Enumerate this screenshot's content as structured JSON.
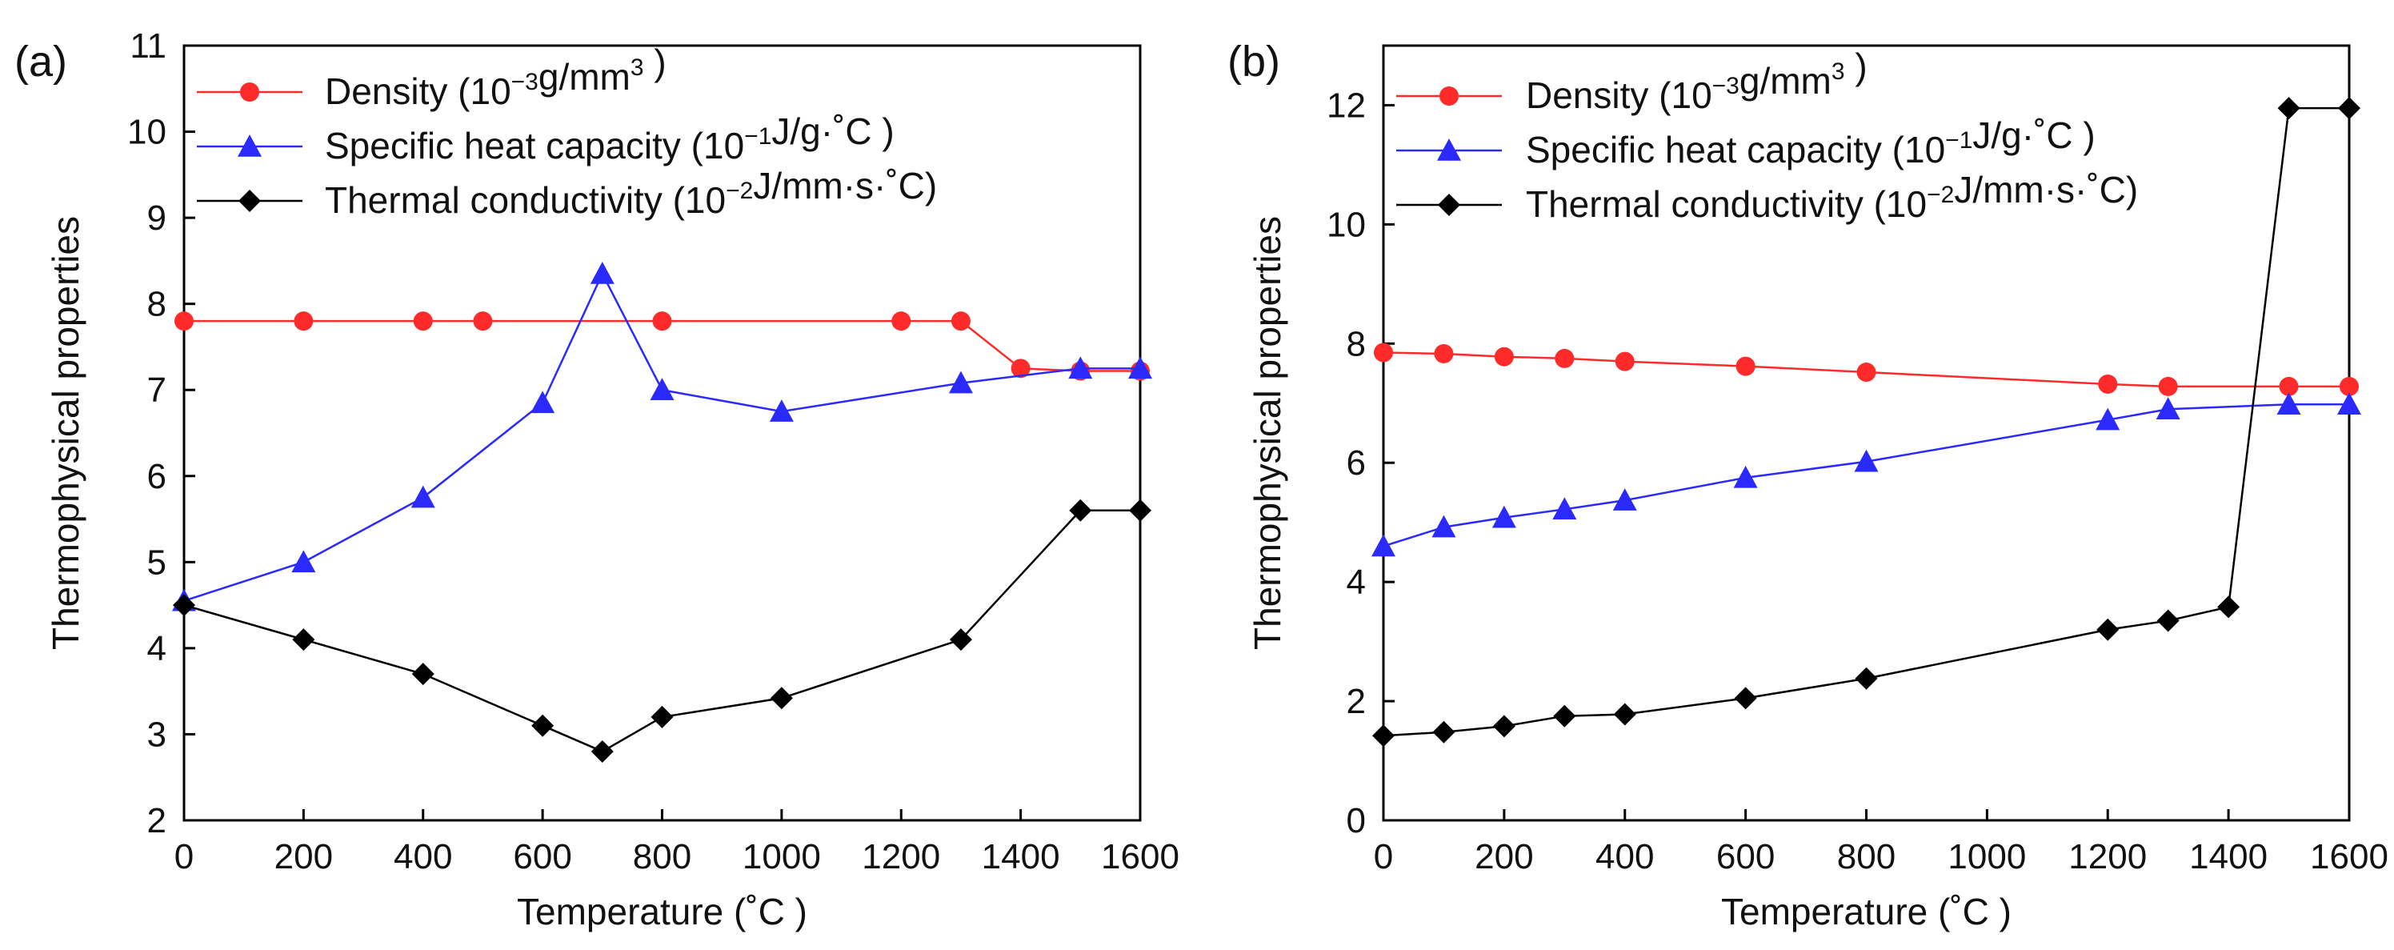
{
  "chart_data": [
    {
      "type": "line",
      "panel_label": "(a)",
      "xlabel": "Temperature (˚C )",
      "ylabel": "Thermophysical properties",
      "xlim": [
        0,
        1600
      ],
      "ylim": [
        2,
        11
      ],
      "xticks": [
        0,
        200,
        400,
        600,
        800,
        1000,
        1200,
        1400,
        1600
      ],
      "xtick_labels": [
        "0",
        "200",
        "400",
        "600",
        "800",
        "1000",
        "1200",
        "1400",
        "1600"
      ],
      "yticks": [
        2,
        3,
        4,
        5,
        6,
        7,
        8,
        9,
        10,
        11
      ],
      "ytick_labels": [
        "2",
        "3",
        "4",
        "5",
        "6",
        "7",
        "8",
        "9",
        "10",
        "11"
      ],
      "grid": false,
      "legend_position": "top-left",
      "series": [
        {
          "name": "Density",
          "legend_base": "Density (10",
          "legend_exp": "−3",
          "legend_mid": "g/mm",
          "legend_sup2": "3",
          "legend_tail": " )",
          "color": "#ff2a2a",
          "marker": "circle",
          "x": [
            0,
            200,
            400,
            500,
            800,
            1200,
            1300,
            1400,
            1500,
            1600
          ],
          "y": [
            7.8,
            7.8,
            7.8,
            7.8,
            7.8,
            7.8,
            7.8,
            7.25,
            7.22,
            7.22
          ]
        },
        {
          "name": "Specific heat capacity",
          "legend_base": "Specific heat capacity (10",
          "legend_exp": "−1",
          "legend_mid": "J/g·˚C )",
          "legend_sup2": "",
          "legend_tail": "",
          "color": "#2a2aff",
          "marker": "triangle",
          "x": [
            0,
            200,
            400,
            600,
            700,
            800,
            1000,
            1300,
            1500,
            1600
          ],
          "y": [
            4.55,
            5.0,
            5.75,
            6.85,
            8.35,
            7.0,
            6.75,
            7.08,
            7.25,
            7.25
          ]
        },
        {
          "name": "Thermal conductivity",
          "legend_base": "Thermal conductivity (10",
          "legend_exp": "−2",
          "legend_mid": "J/mm·s·˚C)",
          "legend_sup2": "",
          "legend_tail": "",
          "color": "#000000",
          "marker": "diamond",
          "x": [
            0,
            200,
            400,
            600,
            700,
            800,
            1000,
            1300,
            1500,
            1600
          ],
          "y": [
            4.5,
            4.1,
            3.7,
            3.1,
            2.8,
            3.2,
            3.42,
            4.1,
            5.6,
            5.6
          ]
        }
      ]
    },
    {
      "type": "line",
      "panel_label": "(b)",
      "xlabel": "Temperature (˚C )",
      "ylabel": "Thermophysical properties",
      "xlim": [
        0,
        1600
      ],
      "ylim": [
        0,
        13
      ],
      "xticks": [
        0,
        200,
        400,
        600,
        800,
        1000,
        1200,
        1400,
        1600
      ],
      "xtick_labels": [
        "0",
        "200",
        "400",
        "600",
        "800",
        "1000",
        "1200",
        "1400",
        "1600"
      ],
      "yticks": [
        0,
        2,
        4,
        6,
        8,
        10,
        12
      ],
      "ytick_labels": [
        "0",
        "2",
        "4",
        "6",
        "8",
        "10",
        "12"
      ],
      "grid": false,
      "legend_position": "top-left",
      "series": [
        {
          "name": "Density",
          "legend_base": "Density (10",
          "legend_exp": "−3",
          "legend_mid": "g/mm",
          "legend_sup2": "3",
          "legend_tail": " )",
          "color": "#ff2a2a",
          "marker": "circle",
          "x": [
            0,
            100,
            200,
            300,
            400,
            600,
            800,
            1200,
            1300,
            1500,
            1600
          ],
          "y": [
            7.85,
            7.83,
            7.78,
            7.75,
            7.7,
            7.62,
            7.52,
            7.32,
            7.28,
            7.28,
            7.28
          ]
        },
        {
          "name": "Specific heat capacity",
          "legend_base": "Specific heat capacity (10",
          "legend_exp": "−1",
          "legend_mid": "J/g·˚C )",
          "legend_sup2": "",
          "legend_tail": "",
          "color": "#2a2aff",
          "marker": "triangle",
          "x": [
            0,
            100,
            200,
            300,
            400,
            600,
            800,
            1200,
            1300,
            1500,
            1600
          ],
          "y": [
            4.6,
            4.92,
            5.08,
            5.22,
            5.37,
            5.75,
            6.02,
            6.72,
            6.9,
            6.98,
            6.98
          ]
        },
        {
          "name": "Thermal conductivity",
          "legend_base": "Thermal conductivity (10",
          "legend_exp": "−2",
          "legend_mid": "J/mm·s·˚C)",
          "legend_sup2": "",
          "legend_tail": "",
          "color": "#000000",
          "marker": "diamond",
          "x": [
            0,
            100,
            200,
            300,
            400,
            600,
            800,
            1200,
            1300,
            1400,
            1500,
            1600
          ],
          "y": [
            1.42,
            1.48,
            1.58,
            1.75,
            1.78,
            2.05,
            2.38,
            3.2,
            3.35,
            3.58,
            11.95,
            11.95
          ]
        }
      ]
    }
  ]
}
